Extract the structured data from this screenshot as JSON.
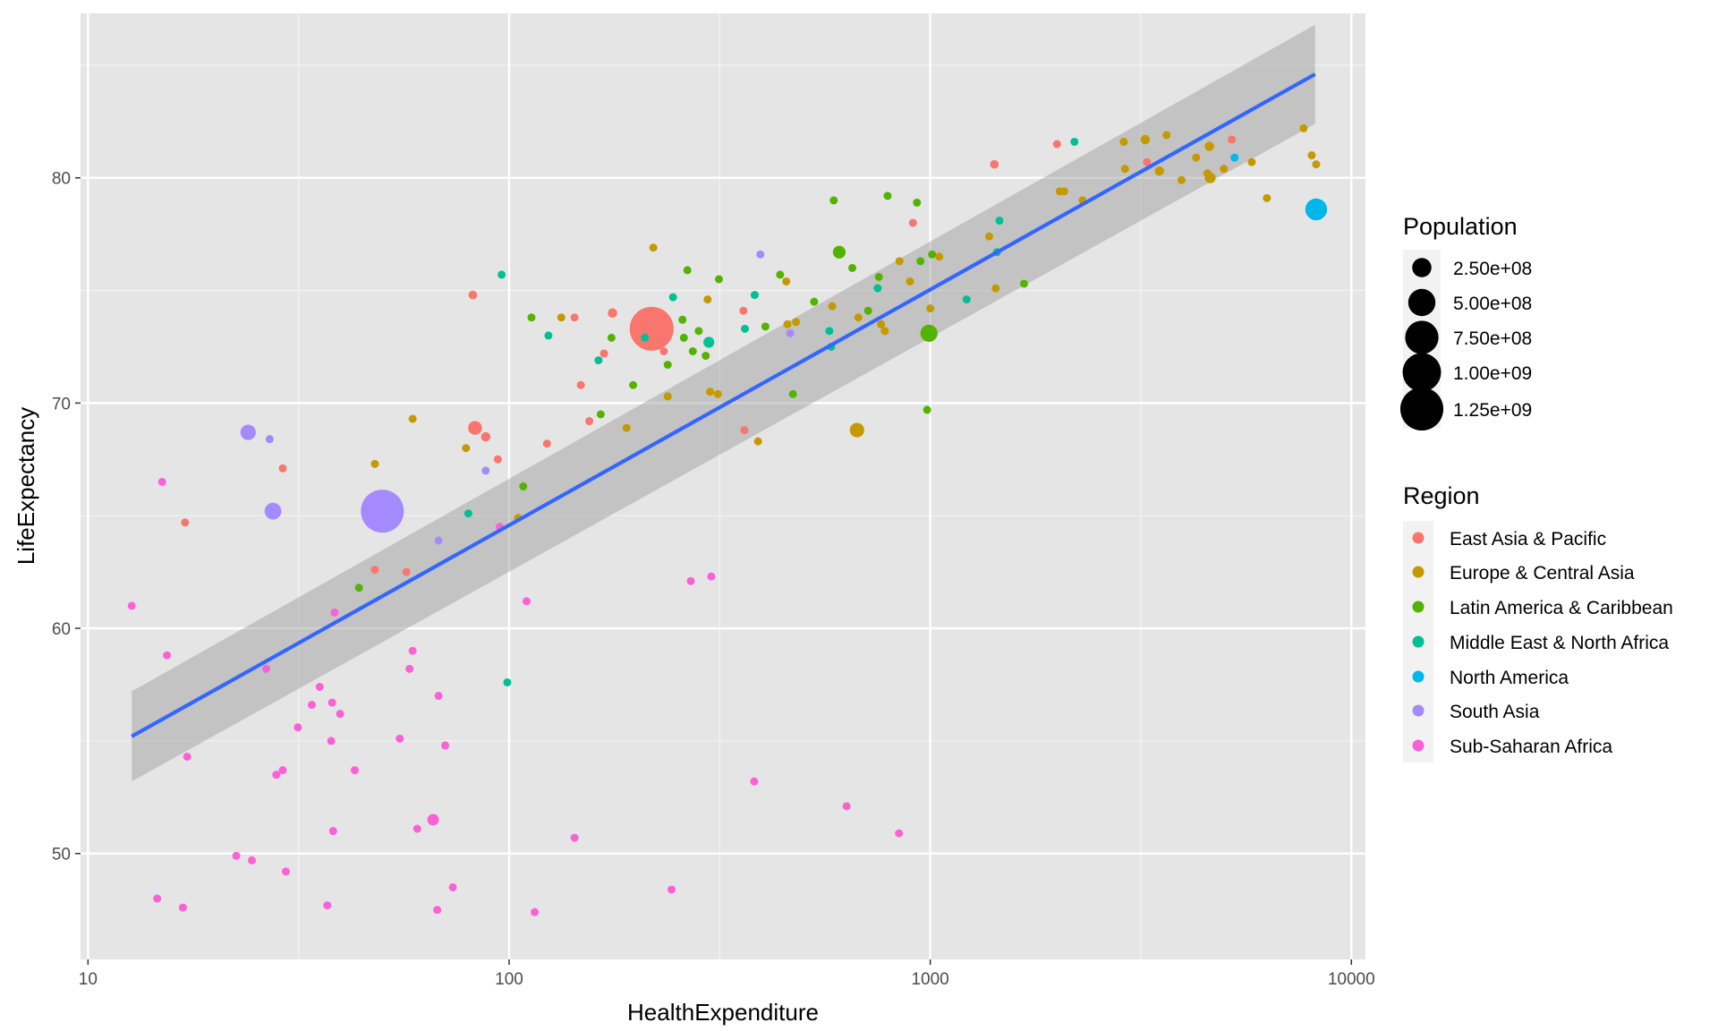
{
  "chart_data": {
    "type": "scatter",
    "title": "",
    "xlabel": "HealthExpenditure",
    "ylabel": "LifeExpectancy",
    "x_scale": "log10",
    "xlim": [
      9.6,
      10800
    ],
    "ylim": [
      45.3,
      87.3
    ],
    "x_ticks": [
      10,
      100,
      1000,
      10000
    ],
    "x_tick_labels": [
      "10",
      "100",
      "1000",
      "10000"
    ],
    "y_ticks": [
      50,
      60,
      70,
      80
    ],
    "y_tick_labels": [
      "50",
      "60",
      "70",
      "80"
    ],
    "grid": true,
    "background": "#e5e5e5",
    "legend_position": "right",
    "size_legend": {
      "title": "Population",
      "values": [
        250000000,
        500000000,
        750000000,
        1000000000,
        1250000000
      ],
      "labels": [
        "2.50e+08",
        "5.00e+08",
        "7.50e+08",
        "1.00e+09",
        "1.25e+09"
      ]
    },
    "color_legend": {
      "title": "Region",
      "entries": [
        {
          "name": "East Asia & Pacific",
          "color": "#F8766D"
        },
        {
          "name": "Europe & Central Asia",
          "color": "#C49A00"
        },
        {
          "name": "Latin America & Caribbean",
          "color": "#53B400"
        },
        {
          "name": "Middle East & North Africa",
          "color": "#00C094"
        },
        {
          "name": "North America",
          "color": "#00B6EB"
        },
        {
          "name": "South Asia",
          "color": "#A58AFF"
        },
        {
          "name": "Sub-Saharan Africa",
          "color": "#FB61D7"
        }
      ]
    },
    "trend_line": {
      "method": "linear fit on log10(x)",
      "color": "#3366FF",
      "ribbon_color": "#999999",
      "x": [
        12.7,
        8200
      ],
      "y": [
        55.2,
        84.6
      ],
      "ci_lower": [
        53.2,
        82.4
      ],
      "ci_upper": [
        57.2,
        86.8
      ]
    },
    "series": [
      {
        "name": "East Asia & Pacific",
        "color": "#F8766D",
        "points": [
          {
            "x": 218,
            "y": 73.3,
            "pop": 1300000000
          },
          {
            "x": 82,
            "y": 74.8,
            "pop": 50000000
          },
          {
            "x": 83,
            "y": 68.9,
            "pop": 130000000
          },
          {
            "x": 88,
            "y": 68.5,
            "pop": 60000000
          },
          {
            "x": 17,
            "y": 64.7,
            "pop": 30000000
          },
          {
            "x": 29,
            "y": 67.1,
            "pop": 7000000
          },
          {
            "x": 48,
            "y": 62.6,
            "pop": 20000000
          },
          {
            "x": 57,
            "y": 62.5,
            "pop": 7000000
          },
          {
            "x": 94,
            "y": 67.5,
            "pop": 4000000
          },
          {
            "x": 123,
            "y": 68.2,
            "pop": 5000000
          },
          {
            "x": 148,
            "y": 70.8,
            "pop": 3000000
          },
          {
            "x": 155,
            "y": 69.2,
            "pop": 3000000
          },
          {
            "x": 168,
            "y": 72.2,
            "pop": 3000000
          },
          {
            "x": 176,
            "y": 74.0,
            "pop": 60000000
          },
          {
            "x": 233,
            "y": 72.3,
            "pop": 5000000
          },
          {
            "x": 360,
            "y": 74.1,
            "pop": 30000000
          },
          {
            "x": 362,
            "y": 68.8,
            "pop": 3000000
          },
          {
            "x": 910,
            "y": 78.0,
            "pop": 3000000
          },
          {
            "x": 1420,
            "y": 80.6,
            "pop": 50000000
          },
          {
            "x": 2000,
            "y": 81.5,
            "pop": 5000000
          },
          {
            "x": 3270,
            "y": 80.7,
            "pop": 5000000
          },
          {
            "x": 5200,
            "y": 81.7,
            "pop": 20000000
          },
          {
            "x": 143,
            "y": 73.8,
            "pop": 3000000
          }
        ]
      },
      {
        "name": "Europe & Central Asia",
        "color": "#C49A00",
        "points": [
          {
            "x": 48,
            "y": 67.3,
            "pop": 7000000
          },
          {
            "x": 59,
            "y": 69.3,
            "pop": 7000000
          },
          {
            "x": 79,
            "y": 68.0,
            "pop": 15000000
          },
          {
            "x": 105,
            "y": 64.9,
            "pop": 4000000
          },
          {
            "x": 133,
            "y": 73.8,
            "pop": 7000000
          },
          {
            "x": 190,
            "y": 68.9,
            "pop": 5000000
          },
          {
            "x": 220,
            "y": 76.9,
            "pop": 5000000
          },
          {
            "x": 238,
            "y": 70.3,
            "pop": 40000000
          },
          {
            "x": 296,
            "y": 74.6,
            "pop": 5000000
          },
          {
            "x": 300,
            "y": 70.5,
            "pop": 10000000
          },
          {
            "x": 313,
            "y": 70.4,
            "pop": 15000000
          },
          {
            "x": 390,
            "y": 68.3,
            "pop": 20000000
          },
          {
            "x": 455,
            "y": 75.4,
            "pop": 5000000
          },
          {
            "x": 458,
            "y": 73.5,
            "pop": 20000000
          },
          {
            "x": 480,
            "y": 73.6,
            "pop": 10000000
          },
          {
            "x": 585,
            "y": 74.3,
            "pop": 5000000
          },
          {
            "x": 670,
            "y": 68.8,
            "pop": 140000000
          },
          {
            "x": 675,
            "y": 73.8,
            "pop": 40000000
          },
          {
            "x": 764,
            "y": 73.5,
            "pop": 5000000
          },
          {
            "x": 780,
            "y": 73.2,
            "pop": 5000000
          },
          {
            "x": 845,
            "y": 76.3,
            "pop": 30000000
          },
          {
            "x": 895,
            "y": 75.4,
            "pop": 5000000
          },
          {
            "x": 1000,
            "y": 74.2,
            "pop": 15000000
          },
          {
            "x": 1050,
            "y": 76.5,
            "pop": 10000000
          },
          {
            "x": 1380,
            "y": 77.4,
            "pop": 5000000
          },
          {
            "x": 1430,
            "y": 75.1,
            "pop": 5000000
          },
          {
            "x": 2030,
            "y": 79.4,
            "pop": 10000000
          },
          {
            "x": 2080,
            "y": 79.4,
            "pop": 10000000
          },
          {
            "x": 2300,
            "y": 79.0,
            "pop": 5000000
          },
          {
            "x": 2880,
            "y": 81.6,
            "pop": 45000000
          },
          {
            "x": 2900,
            "y": 80.4,
            "pop": 15000000
          },
          {
            "x": 3240,
            "y": 81.7,
            "pop": 60000000
          },
          {
            "x": 3500,
            "y": 80.3,
            "pop": 60000000
          },
          {
            "x": 3640,
            "y": 81.9,
            "pop": 5000000
          },
          {
            "x": 3950,
            "y": 79.9,
            "pop": 10000000
          },
          {
            "x": 4280,
            "y": 80.9,
            "pop": 10000000
          },
          {
            "x": 4550,
            "y": 80.2,
            "pop": 10000000
          },
          {
            "x": 4600,
            "y": 81.4,
            "pop": 60000000
          },
          {
            "x": 4620,
            "y": 80.0,
            "pop": 80000000
          },
          {
            "x": 4980,
            "y": 80.4,
            "pop": 5000000
          },
          {
            "x": 5800,
            "y": 80.7,
            "pop": 15000000
          },
          {
            "x": 6300,
            "y": 79.1,
            "pop": 5000000
          },
          {
            "x": 7700,
            "y": 82.2,
            "pop": 10000000
          },
          {
            "x": 8050,
            "y": 81.0,
            "pop": 10000000
          },
          {
            "x": 8250,
            "y": 80.6,
            "pop": 5000000
          }
        ]
      },
      {
        "name": "Latin America & Caribbean",
        "color": "#53B400",
        "points": [
          {
            "x": 44,
            "y": 61.8,
            "pop": 10000000
          },
          {
            "x": 108,
            "y": 66.3,
            "pop": 10000000
          },
          {
            "x": 113,
            "y": 73.8,
            "pop": 10000000
          },
          {
            "x": 165,
            "y": 69.5,
            "pop": 5000000
          },
          {
            "x": 175,
            "y": 72.9,
            "pop": 10000000
          },
          {
            "x": 197,
            "y": 70.8,
            "pop": 15000000
          },
          {
            "x": 238,
            "y": 71.7,
            "pop": 5000000
          },
          {
            "x": 258,
            "y": 73.7,
            "pop": 30000000
          },
          {
            "x": 260,
            "y": 72.9,
            "pop": 5000000
          },
          {
            "x": 265,
            "y": 75.9,
            "pop": 5000000
          },
          {
            "x": 273,
            "y": 72.3,
            "pop": 10000000
          },
          {
            "x": 282,
            "y": 73.2,
            "pop": 10000000
          },
          {
            "x": 293,
            "y": 72.1,
            "pop": 3000000
          },
          {
            "x": 315,
            "y": 75.5,
            "pop": 15000000
          },
          {
            "x": 406,
            "y": 73.4,
            "pop": 30000000
          },
          {
            "x": 440,
            "y": 75.7,
            "pop": 5000000
          },
          {
            "x": 472,
            "y": 70.4,
            "pop": 5000000
          },
          {
            "x": 530,
            "y": 74.5,
            "pop": 5000000
          },
          {
            "x": 590,
            "y": 79.0,
            "pop": 10000000
          },
          {
            "x": 608,
            "y": 76.7,
            "pop": 110000000
          },
          {
            "x": 653,
            "y": 76.0,
            "pop": 5000000
          },
          {
            "x": 712,
            "y": 74.1,
            "pop": 30000000
          },
          {
            "x": 755,
            "y": 75.6,
            "pop": 40000000
          },
          {
            "x": 792,
            "y": 79.2,
            "pop": 5000000
          },
          {
            "x": 930,
            "y": 78.9,
            "pop": 10000000
          },
          {
            "x": 948,
            "y": 76.3,
            "pop": 5000000
          },
          {
            "x": 983,
            "y": 69.7,
            "pop": 5000000
          },
          {
            "x": 993,
            "y": 73.1,
            "pop": 200000000
          },
          {
            "x": 1010,
            "y": 76.6,
            "pop": 5000000
          },
          {
            "x": 1670,
            "y": 75.3,
            "pop": 5000000
          }
        ]
      },
      {
        "name": "Middle East & North Africa",
        "color": "#00C094",
        "points": [
          {
            "x": 96,
            "y": 75.7,
            "pop": 20000000
          },
          {
            "x": 80,
            "y": 65.1,
            "pop": 20000000
          },
          {
            "x": 99,
            "y": 57.6,
            "pop": 3000000
          },
          {
            "x": 124,
            "y": 73.0,
            "pop": 35000000
          },
          {
            "x": 163,
            "y": 71.9,
            "pop": 30000000
          },
          {
            "x": 210,
            "y": 72.9,
            "pop": 40000000
          },
          {
            "x": 245,
            "y": 74.7,
            "pop": 10000000
          },
          {
            "x": 298,
            "y": 72.7,
            "pop": 80000000
          },
          {
            "x": 363,
            "y": 73.3,
            "pop": 10000000
          },
          {
            "x": 383,
            "y": 74.8,
            "pop": 10000000
          },
          {
            "x": 576,
            "y": 73.2,
            "pop": 5000000
          },
          {
            "x": 582,
            "y": 72.5,
            "pop": 5000000
          },
          {
            "x": 750,
            "y": 75.1,
            "pop": 5000000
          },
          {
            "x": 1220,
            "y": 74.6,
            "pop": 5000000
          },
          {
            "x": 1440,
            "y": 76.7,
            "pop": 5000000
          },
          {
            "x": 1460,
            "y": 78.1,
            "pop": 5000000
          },
          {
            "x": 2200,
            "y": 81.6,
            "pop": 10000000
          }
        ]
      },
      {
        "name": "North America",
        "color": "#00B6EB",
        "points": [
          {
            "x": 8250,
            "y": 78.6,
            "pop": 320000000
          },
          {
            "x": 5280,
            "y": 80.9,
            "pop": 35000000
          }
        ]
      },
      {
        "name": "South Asia",
        "color": "#A58AFF",
        "points": [
          {
            "x": 50,
            "y": 65.2,
            "pop": 1250000000
          },
          {
            "x": 24,
            "y": 68.7,
            "pop": 160000000
          },
          {
            "x": 27,
            "y": 68.4,
            "pop": 30000000
          },
          {
            "x": 27.5,
            "y": 65.2,
            "pop": 190000000
          },
          {
            "x": 68,
            "y": 63.9,
            "pop": 30000000
          },
          {
            "x": 88,
            "y": 67.0,
            "pop": 5000000
          },
          {
            "x": 395,
            "y": 76.6,
            "pop": 5000000
          },
          {
            "x": 465,
            "y": 73.1,
            "pop": 3000000
          }
        ]
      },
      {
        "name": "Sub-Saharan Africa",
        "color": "#FB61D7",
        "points": [
          {
            "x": 12.7,
            "y": 61.0,
            "pop": 10000000
          },
          {
            "x": 14.6,
            "y": 48.0,
            "pop": 30000000
          },
          {
            "x": 15,
            "y": 66.5,
            "pop": 20000000
          },
          {
            "x": 15.4,
            "y": 58.8,
            "pop": 40000000
          },
          {
            "x": 16.8,
            "y": 47.6,
            "pop": 5000000
          },
          {
            "x": 17.2,
            "y": 54.3,
            "pop": 15000000
          },
          {
            "x": 22.5,
            "y": 49.9,
            "pop": 15000000
          },
          {
            "x": 24.5,
            "y": 49.7,
            "pop": 20000000
          },
          {
            "x": 26.5,
            "y": 58.2,
            "pop": 5000000
          },
          {
            "x": 28,
            "y": 53.5,
            "pop": 20000000
          },
          {
            "x": 29,
            "y": 53.7,
            "pop": 15000000
          },
          {
            "x": 29.5,
            "y": 49.2,
            "pop": 15000000
          },
          {
            "x": 31.5,
            "y": 55.6,
            "pop": 15000000
          },
          {
            "x": 34,
            "y": 56.6,
            "pop": 30000000
          },
          {
            "x": 35.5,
            "y": 57.4,
            "pop": 30000000
          },
          {
            "x": 37,
            "y": 47.7,
            "pop": 5000000
          },
          {
            "x": 37.8,
            "y": 55.0,
            "pop": 15000000
          },
          {
            "x": 38,
            "y": 56.7,
            "pop": 15000000
          },
          {
            "x": 38.2,
            "y": 51.0,
            "pop": 20000000
          },
          {
            "x": 38.5,
            "y": 60.7,
            "pop": 3000000
          },
          {
            "x": 39.7,
            "y": 56.2,
            "pop": 15000000
          },
          {
            "x": 43,
            "y": 53.7,
            "pop": 30000000
          },
          {
            "x": 55,
            "y": 55.1,
            "pop": 15000000
          },
          {
            "x": 58,
            "y": 58.2,
            "pop": 10000000
          },
          {
            "x": 59,
            "y": 59.0,
            "pop": 15000000
          },
          {
            "x": 60.5,
            "y": 51.1,
            "pop": 20000000
          },
          {
            "x": 66,
            "y": 51.5,
            "pop": 90000000
          },
          {
            "x": 67.5,
            "y": 47.5,
            "pop": 10000000
          },
          {
            "x": 68,
            "y": 57.0,
            "pop": 10000000
          },
          {
            "x": 70.5,
            "y": 54.8,
            "pop": 15000000
          },
          {
            "x": 73.5,
            "y": 48.5,
            "pop": 15000000
          },
          {
            "x": 95,
            "y": 64.5,
            "pop": 3000000
          },
          {
            "x": 110,
            "y": 61.2,
            "pop": 30000000
          },
          {
            "x": 115,
            "y": 47.4,
            "pop": 5000000
          },
          {
            "x": 143,
            "y": 50.7,
            "pop": 20000000
          },
          {
            "x": 243,
            "y": 48.4,
            "pop": 5000000
          },
          {
            "x": 270,
            "y": 62.1,
            "pop": 5000000
          },
          {
            "x": 302,
            "y": 62.3,
            "pop": 5000000
          },
          {
            "x": 382,
            "y": 53.2,
            "pop": 5000000
          },
          {
            "x": 633,
            "y": 52.1,
            "pop": 30000000
          },
          {
            "x": 843,
            "y": 50.9,
            "pop": 5000000
          }
        ]
      }
    ]
  }
}
